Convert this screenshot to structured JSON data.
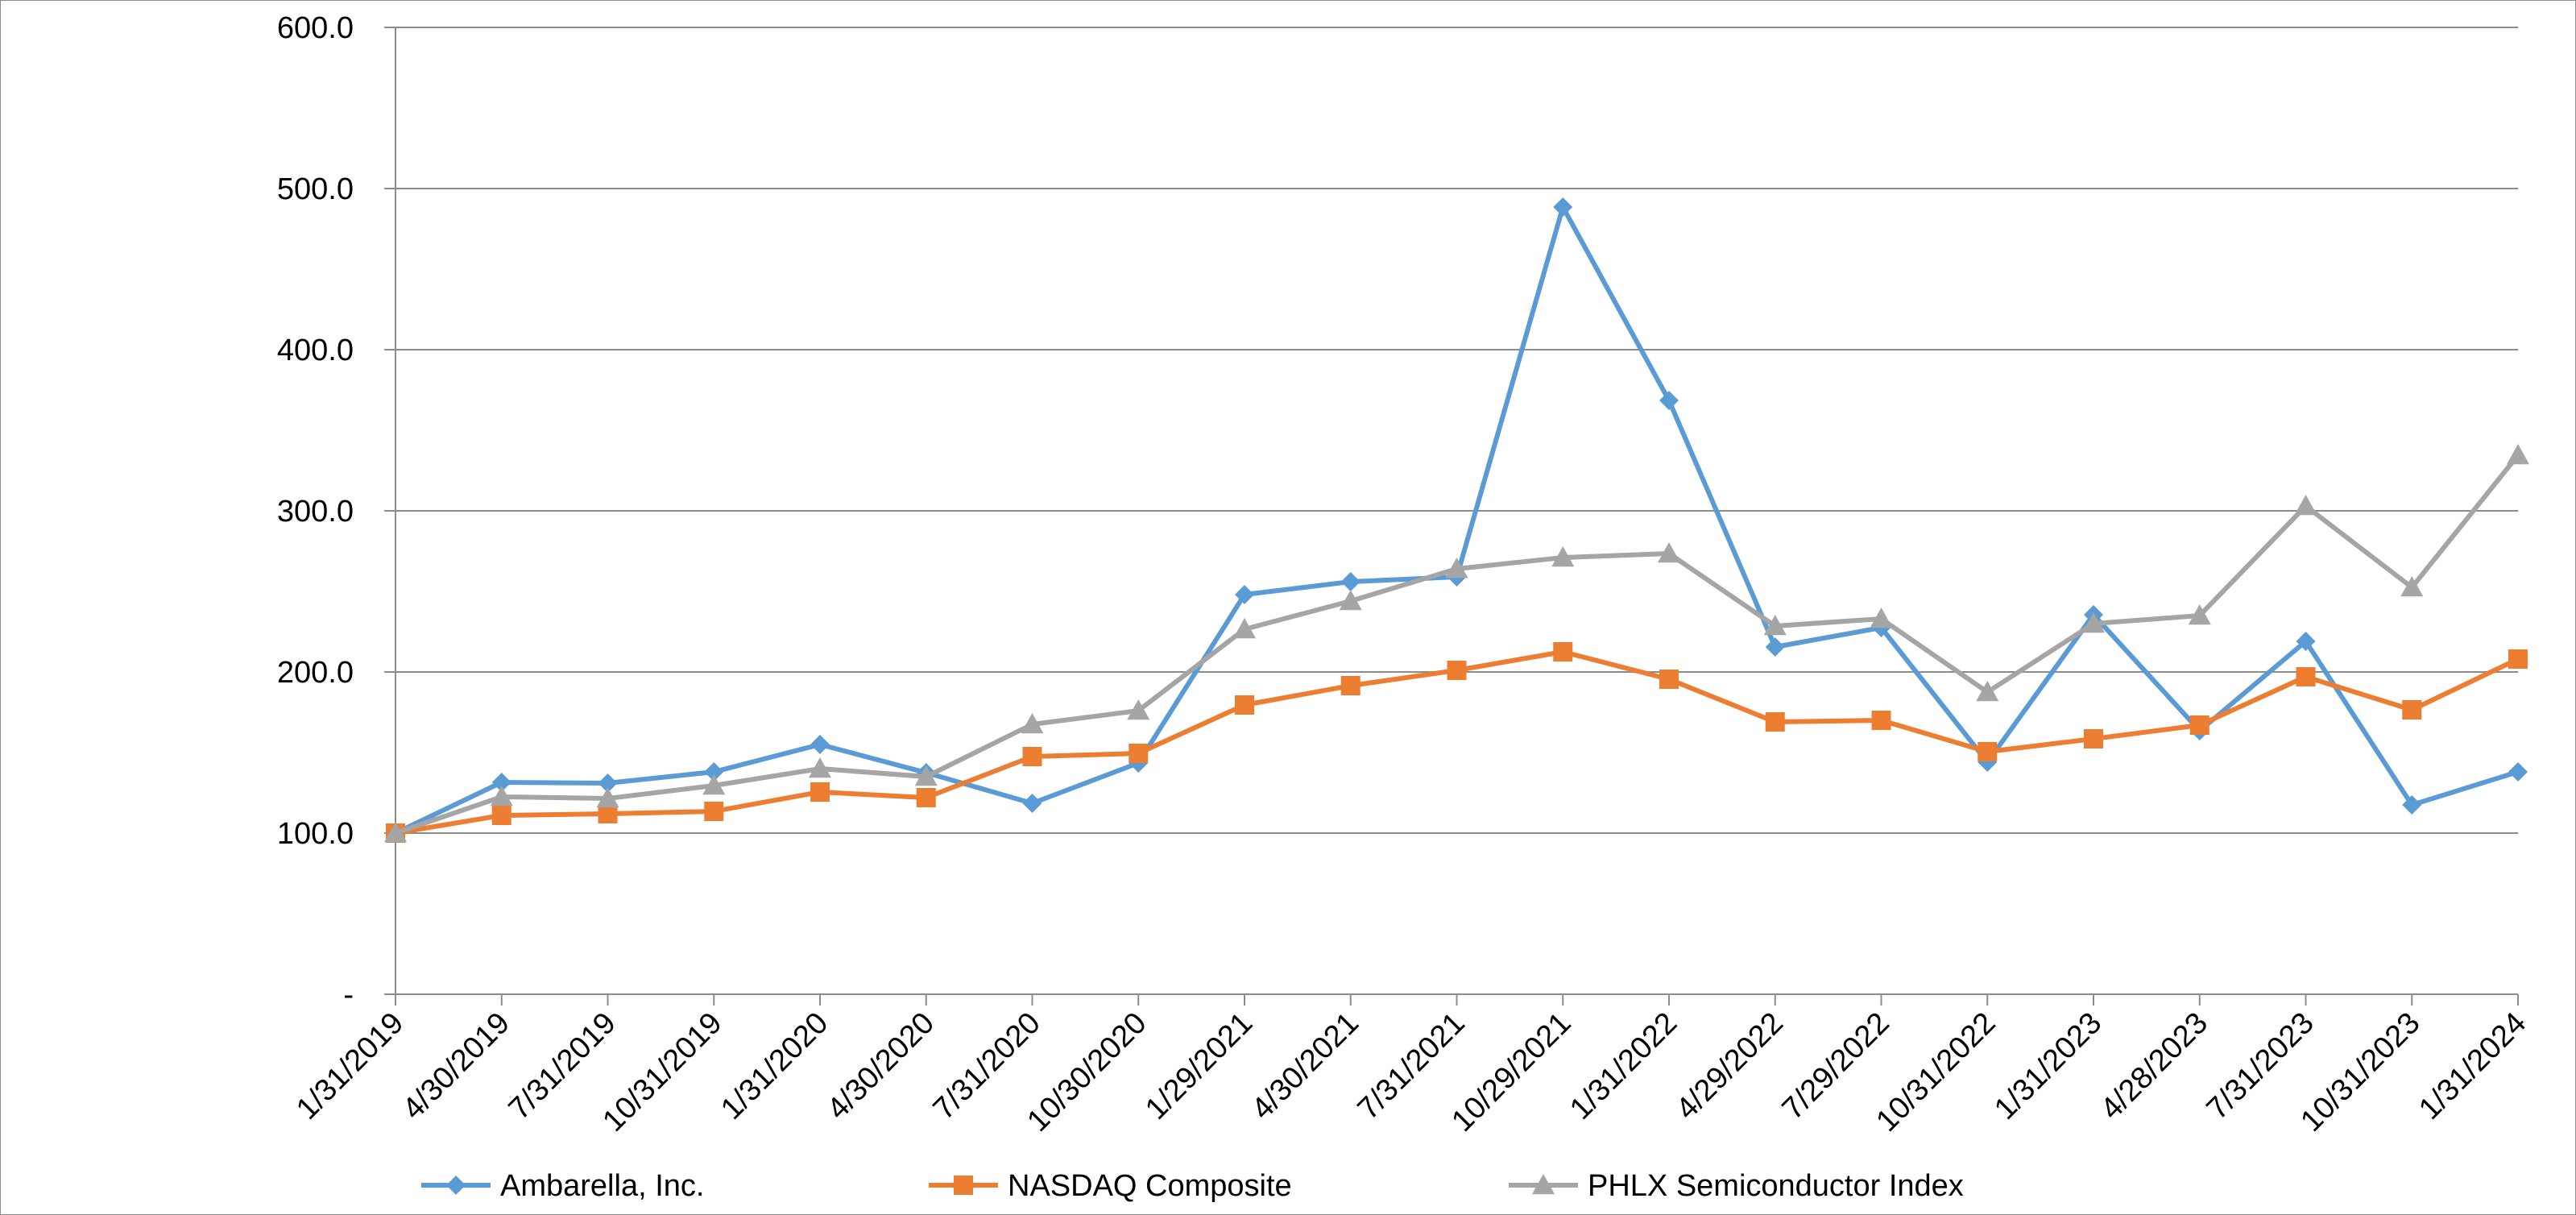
{
  "chart_data": {
    "type": "line",
    "title": "",
    "xlabel": "",
    "ylabel": "",
    "categories": [
      "1/31/2019",
      "4/30/2019",
      "7/31/2019",
      "10/31/2019",
      "1/31/2020",
      "4/30/2020",
      "7/31/2020",
      "10/30/2020",
      "1/29/2021",
      "4/30/2021",
      "7/31/2021",
      "10/29/2021",
      "1/31/2022",
      "4/29/2022",
      "7/29/2022",
      "10/31/2022",
      "1/31/2023",
      "4/28/2023",
      "7/31/2023",
      "10/31/2023",
      "1/31/2024"
    ],
    "ylim": [
      0,
      600
    ],
    "yticks": [
      0,
      100,
      200,
      300,
      400,
      500,
      600
    ],
    "ytick_labels": [
      "-",
      "100.0",
      "200.0",
      "300.0",
      "400.0",
      "500.0",
      "600.0"
    ],
    "grid": true,
    "legend_position": "bottom",
    "series": [
      {
        "name": "Ambarella, Inc.",
        "color": "#5b9bd5",
        "marker": "diamond",
        "values": [
          100.0,
          131.5,
          131.0,
          138.0,
          155.0,
          137.5,
          118.5,
          143.5,
          248.0,
          256.0,
          259.0,
          488.5,
          368.5,
          215.5,
          227.5,
          144.0,
          235.5,
          163.5,
          219.0,
          117.5,
          138.0
        ]
      },
      {
        "name": "NASDAQ Composite",
        "color": "#ed7d31",
        "marker": "square",
        "values": [
          100.0,
          111.0,
          112.0,
          113.5,
          125.5,
          122.0,
          147.5,
          149.5,
          179.5,
          191.5,
          201.0,
          212.5,
          195.5,
          169.0,
          170.0,
          150.5,
          158.5,
          167.0,
          197.0,
          176.5,
          208.0
        ]
      },
      {
        "name": "PHLX Semiconductor Index",
        "color": "#a5a5a5",
        "marker": "triangle",
        "values": [
          100.0,
          122.5,
          121.5,
          129.5,
          140.0,
          135.0,
          167.5,
          176.0,
          226.5,
          244.0,
          264.0,
          271.0,
          273.5,
          228.5,
          233.0,
          187.5,
          230.0,
          235.0,
          303.0,
          252.5,
          334.5
        ]
      }
    ]
  }
}
